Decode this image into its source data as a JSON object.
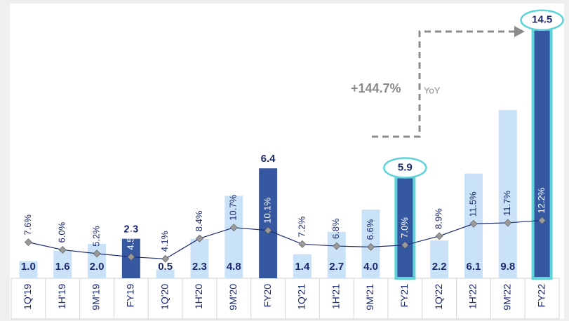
{
  "chart_data": {
    "type": "bar",
    "categories": [
      "1Q'19",
      "1H'19",
      "9M'19",
      "FY19",
      "1Q'20",
      "1H'20",
      "9M'20",
      "FY20",
      "1Q'21",
      "1H'21",
      "9M'21",
      "FY21",
      "1Q'22",
      "1H'22",
      "9M'22",
      "FY22"
    ],
    "ylim": [
      0,
      16
    ],
    "y2lim": [
      0,
      58
    ],
    "series": [
      {
        "type": "bar",
        "values": [
          1.0,
          1.6,
          2.0,
          2.3,
          0.5,
          2.3,
          4.8,
          6.4,
          1.4,
          2.7,
          4.0,
          5.9,
          2.2,
          6.1,
          9.8,
          14.5
        ],
        "value_labels": [
          "1.0",
          "1.6",
          "2.0",
          "2.3",
          "0.5",
          "2.3",
          "4.8",
          "6.4",
          "1.4",
          "2.7",
          "4.0",
          "5.9",
          "2.2",
          "6.1",
          "9.8",
          "14.5"
        ],
        "colors": [
          "#c9e2f8",
          "#c9e2f8",
          "#c9e2f8",
          "#3658a0",
          "#c9e2f8",
          "#c9e2f8",
          "#c9e2f8",
          "#3658a0",
          "#c9e2f8",
          "#c9e2f8",
          "#c9e2f8",
          "#3658a0",
          "#c9e2f8",
          "#c9e2f8",
          "#c9e2f8",
          "#3658a0"
        ],
        "highlight": [
          false,
          false,
          false,
          false,
          false,
          false,
          false,
          false,
          false,
          false,
          false,
          true,
          false,
          false,
          false,
          true
        ],
        "highlight_color": "#5fd3d8"
      },
      {
        "type": "line",
        "axis": "y2",
        "color": "#1c2a6e",
        "marker_color": "#9a9a9a",
        "values": [
          7.6,
          6.0,
          5.2,
          4.5,
          4.1,
          8.4,
          10.7,
          10.1,
          7.2,
          6.8,
          6.6,
          7.0,
          8.9,
          11.5,
          11.7,
          12.2
        ],
        "value_labels": [
          "7.6%",
          "6.0%",
          "5.2%",
          "4.5%",
          "4.1%",
          "8.4%",
          "10.7%",
          "10.1%",
          "7.2%",
          "6.8%",
          "6.6%",
          "7.0%",
          "8.9%",
          "11.5%",
          "11.7%",
          "12.2%"
        ]
      }
    ],
    "annotation": {
      "text": "+144.7%",
      "unit": "YoY"
    }
  }
}
